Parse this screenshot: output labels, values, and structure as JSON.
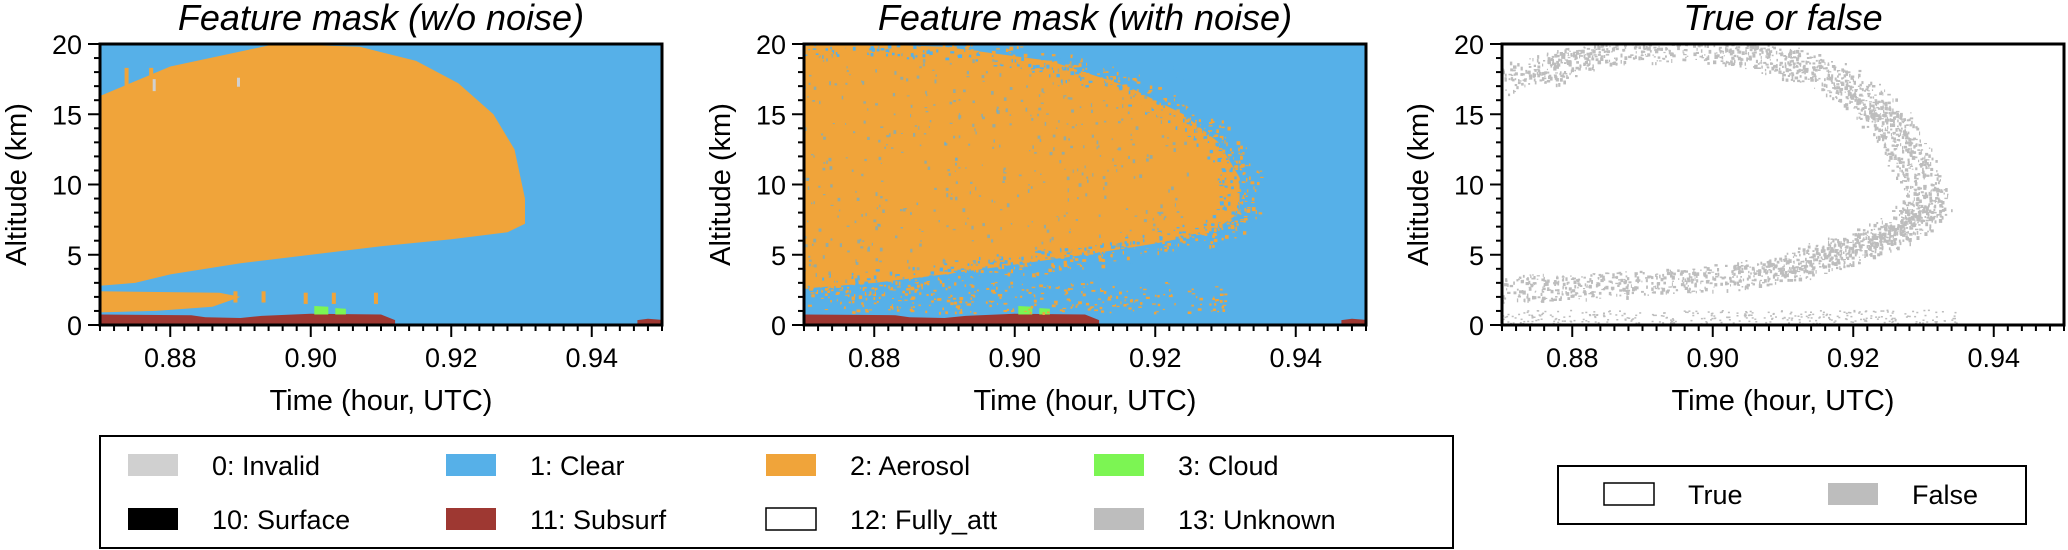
{
  "colors": {
    "clear": "#56B0E8",
    "aerosol": "#F0A43A",
    "cloud": "#7CF553",
    "subsurf": "#9E3832",
    "surface": "#000000",
    "invalid": "#D0D0D0",
    "unknown": "#BDBDBD",
    "false": "#BDBDBD",
    "true": "#FFFFFF"
  },
  "chart_data": [
    {
      "type": "heatmap",
      "title": "Feature mask (w/o noise)",
      "xlabel": "Time (hour, UTC)",
      "ylabel": "Altitude (km)",
      "xlim": [
        0.87,
        0.95
      ],
      "ylim": [
        0,
        20
      ],
      "xticks": [
        "0.88",
        "0.90",
        "0.92",
        "0.94"
      ],
      "yticks": [
        "0",
        "5",
        "10",
        "15",
        "20"
      ],
      "background_class": "1: Clear",
      "regions": [
        {
          "class": "2: Aerosol",
          "outline": [
            [
              0.87,
              2.8
            ],
            [
              0.875,
              3.0
            ],
            [
              0.88,
              3.6
            ],
            [
              0.89,
              4.4
            ],
            [
              0.9,
              5.0
            ],
            [
              0.91,
              5.6
            ],
            [
              0.92,
              6.1
            ],
            [
              0.928,
              6.6
            ],
            [
              0.9305,
              7.2
            ],
            [
              0.9305,
              9.0
            ],
            [
              0.929,
              12.5
            ],
            [
              0.926,
              15.0
            ],
            [
              0.921,
              17.2
            ],
            [
              0.915,
              18.8
            ],
            [
              0.907,
              19.8
            ],
            [
              0.895,
              20
            ],
            [
              0.88,
              18.4
            ],
            [
              0.87,
              16.3
            ]
          ]
        },
        {
          "class": "2: Aerosol",
          "outline": [
            [
              0.87,
              0.9
            ],
            [
              0.878,
              1.0
            ],
            [
              0.886,
              1.3
            ],
            [
              0.89,
              2.0
            ],
            [
              0.887,
              2.3
            ],
            [
              0.87,
              2.4
            ]
          ]
        },
        {
          "class": "11: Subsurf",
          "outline": [
            [
              0.87,
              0
            ],
            [
              0.87,
              0.75
            ],
            [
              0.883,
              0.7
            ],
            [
              0.885,
              0.55
            ],
            [
              0.89,
              0.5
            ],
            [
              0.893,
              0.65
            ],
            [
              0.9,
              0.8
            ],
            [
              0.91,
              0.75
            ],
            [
              0.912,
              0.35
            ],
            [
              0.912,
              0
            ]
          ]
        },
        {
          "class": "11: Subsurf",
          "outline": [
            [
              0.9465,
              0
            ],
            [
              0.9465,
              0.35
            ],
            [
              0.948,
              0.45
            ],
            [
              0.9505,
              0.35
            ],
            [
              0.9505,
              0
            ]
          ]
        },
        {
          "class": "3: Cloud",
          "outline": [
            [
              0.9005,
              0.75
            ],
            [
              0.9005,
              1.35
            ],
            [
              0.9025,
              1.3
            ],
            [
              0.9025,
              0.75
            ]
          ]
        },
        {
          "class": "3: Cloud",
          "outline": [
            [
              0.9035,
              0.75
            ],
            [
              0.9035,
              1.2
            ],
            [
              0.905,
              1.15
            ],
            [
              0.905,
              0.75
            ]
          ]
        }
      ]
    },
    {
      "type": "heatmap",
      "title": "Feature mask (with noise)",
      "xlabel": "Time (hour, UTC)",
      "ylabel": "Altitude (km)",
      "xlim": [
        0.87,
        0.95
      ],
      "ylim": [
        0,
        20
      ],
      "xticks": [
        "0.88",
        "0.90",
        "0.92",
        "0.94"
      ],
      "yticks": [
        "0",
        "5",
        "10",
        "15",
        "20"
      ],
      "background_class": "1: Clear",
      "regions": [
        {
          "class": "2: Aerosol",
          "outline": [
            [
              0.87,
              2.6
            ],
            [
              0.88,
              3.0
            ],
            [
              0.89,
              3.6
            ],
            [
              0.9,
              4.3
            ],
            [
              0.91,
              5.0
            ],
            [
              0.92,
              5.8
            ],
            [
              0.928,
              6.6
            ],
            [
              0.932,
              8.0
            ],
            [
              0.932,
              10.5
            ],
            [
              0.929,
              13.0
            ],
            [
              0.924,
              15.0
            ],
            [
              0.916,
              17.0
            ],
            [
              0.905,
              18.8
            ],
            [
              0.89,
              19.8
            ],
            [
              0.878,
              20
            ],
            [
              0.87,
              20
            ]
          ]
        },
        {
          "class": "11: Subsurf",
          "outline": [
            [
              0.87,
              0
            ],
            [
              0.87,
              0.75
            ],
            [
              0.883,
              0.7
            ],
            [
              0.885,
              0.55
            ],
            [
              0.89,
              0.5
            ],
            [
              0.893,
              0.65
            ],
            [
              0.9,
              0.8
            ],
            [
              0.91,
              0.75
            ],
            [
              0.912,
              0.35
            ],
            [
              0.912,
              0
            ]
          ]
        },
        {
          "class": "11: Subsurf",
          "outline": [
            [
              0.9465,
              0
            ],
            [
              0.9465,
              0.35
            ],
            [
              0.948,
              0.45
            ],
            [
              0.9505,
              0.35
            ],
            [
              0.9505,
              0
            ]
          ]
        },
        {
          "class": "3: Cloud",
          "outline": [
            [
              0.9005,
              0.75
            ],
            [
              0.9005,
              1.35
            ],
            [
              0.9025,
              1.3
            ],
            [
              0.9025,
              0.75
            ]
          ]
        },
        {
          "class": "3: Cloud",
          "outline": [
            [
              0.9035,
              0.75
            ],
            [
              0.9035,
              1.2
            ],
            [
              0.905,
              1.15
            ],
            [
              0.905,
              0.75
            ]
          ]
        }
      ]
    },
    {
      "type": "heatmap",
      "title": "True or false",
      "xlabel": "Time (hour, UTC)",
      "ylabel": "Altitude (km)",
      "xlim": [
        0.87,
        0.95
      ],
      "ylim": [
        0,
        20
      ],
      "xticks": [
        "0.88",
        "0.90",
        "0.92",
        "0.94"
      ],
      "yticks": [
        "0",
        "5",
        "10",
        "15",
        "20"
      ],
      "background_class": "True",
      "false_band": [
        [
          0.87,
          2.5
        ],
        [
          0.88,
          2.8
        ],
        [
          0.89,
          3.0
        ],
        [
          0.9,
          3.3
        ],
        [
          0.91,
          4.0
        ],
        [
          0.915,
          4.7
        ],
        [
          0.92,
          5.6
        ],
        [
          0.925,
          6.5
        ],
        [
          0.9285,
          7.5
        ],
        [
          0.931,
          9.0
        ],
        [
          0.928,
          12.0
        ],
        [
          0.925,
          14.5
        ],
        [
          0.922,
          16.0
        ],
        [
          0.918,
          17.5
        ],
        [
          0.912,
          18.6
        ],
        [
          0.905,
          19.4
        ],
        [
          0.895,
          19.8
        ],
        [
          0.885,
          19.4
        ],
        [
          0.878,
          18.5
        ],
        [
          0.87,
          17.3
        ]
      ]
    }
  ],
  "legends": {
    "feature_mask": [
      {
        "label": "0: Invalid",
        "color": "#D0D0D0"
      },
      {
        "label": "1: Clear",
        "color": "#56B0E8"
      },
      {
        "label": "2: Aerosol",
        "color": "#F0A43A"
      },
      {
        "label": "3: Cloud",
        "color": "#7CF553"
      },
      {
        "label": "10: Surface",
        "color": "#000000"
      },
      {
        "label": "11: Subsurf",
        "color": "#9E3832"
      },
      {
        "label": "12: Fully_att",
        "color": "#FFFFFF"
      },
      {
        "label": "13: Unknown",
        "color": "#BDBDBD"
      }
    ],
    "true_false": [
      {
        "label": "True",
        "color": "#FFFFFF"
      },
      {
        "label": "False",
        "color": "#BDBDBD"
      }
    ]
  }
}
